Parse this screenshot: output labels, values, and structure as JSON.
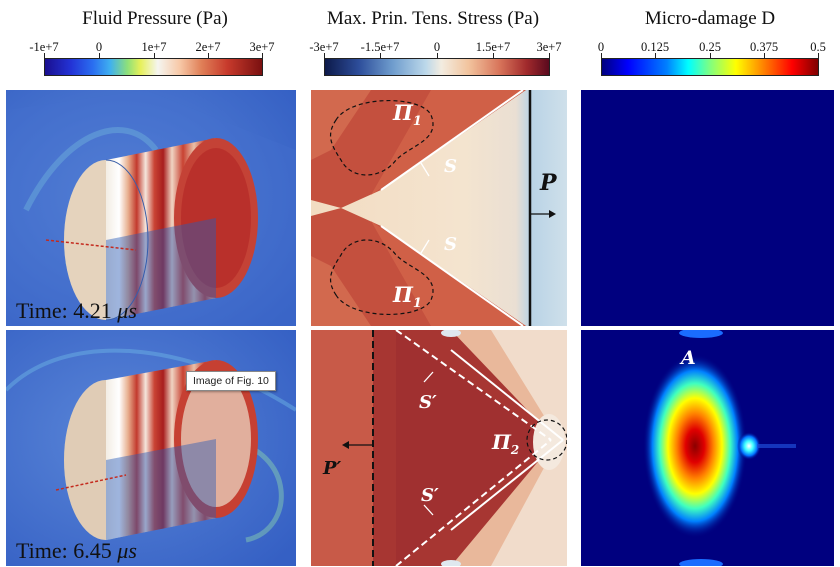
{
  "columns": {
    "pressure": {
      "title": "Fluid Pressure (Pa)",
      "ticks": [
        "-1e+7",
        "0",
        "1e+7",
        "2e+7",
        "3e+7"
      ]
    },
    "stress": {
      "title": "Max. Prin. Tens. Stress (Pa)",
      "ticks": [
        "-3e+7",
        "-1.5e+7",
        "0",
        "1.5e+7",
        "3e+7"
      ]
    },
    "damage": {
      "title": "Micro-damage D",
      "ticks": [
        "0",
        "0.125",
        "0.25",
        "0.375",
        "0.5"
      ]
    }
  },
  "rows": {
    "top": {
      "time_prefix": "Time: 4.21 ",
      "time_unit": "μs"
    },
    "bottom": {
      "time_prefix": "Time: 6.45 ",
      "time_unit": "μs"
    }
  },
  "annotations": {
    "pi1": "Π",
    "pi1_sub": "1",
    "pi2": "Π",
    "pi2_sub": "2",
    "s": "S",
    "s_prime": "S′",
    "p": "P",
    "p_prime": "P′",
    "a": "A"
  },
  "tooltip": "Image of Fig. 10",
  "colors": {
    "jet_dark": "#00007f",
    "stress_dark_red": "#6b0d1a",
    "stress_light": "#f3e7d6",
    "pressure_background": "#3e67c9"
  }
}
